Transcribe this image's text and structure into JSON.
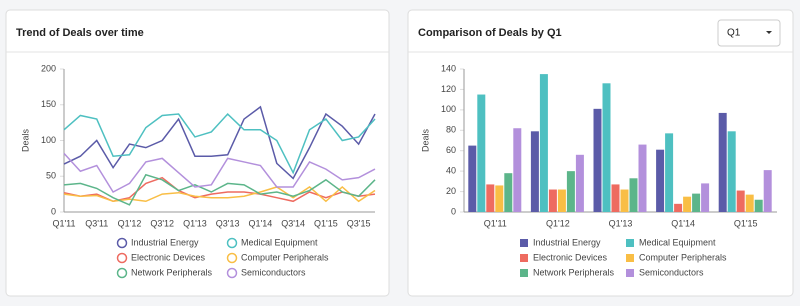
{
  "controls": {
    "quarter_select": "Q1"
  },
  "chart_data": [
    {
      "type": "line",
      "title": "Trend of Deals over time",
      "y_label": "Deals",
      "categories": [
        "Q1'11",
        null,
        "Q3'11",
        null,
        "Q1'12",
        null,
        "Q3'12",
        null,
        "Q1'13",
        null,
        "Q3'13",
        null,
        "Q1'14",
        null,
        "Q3'14",
        null,
        "Q1'15",
        null,
        "Q3'15",
        null
      ],
      "ylim": [
        0,
        200
      ],
      "yticks": [
        0,
        50,
        100,
        150,
        200
      ],
      "legend": "bottom",
      "series": [
        {
          "name": "Industrial Energy",
          "color": "#5b5ba8",
          "values": [
            67,
            78,
            100,
            62,
            95,
            90,
            100,
            130,
            78,
            78,
            80,
            130,
            147,
            68,
            47,
            90,
            137,
            120,
            95,
            137
          ]
        },
        {
          "name": "Medical Equipment",
          "color": "#4ec0c1",
          "values": [
            115,
            135,
            130,
            78,
            80,
            118,
            135,
            137,
            105,
            112,
            137,
            115,
            115,
            100,
            55,
            115,
            130,
            100,
            105,
            130
          ]
        },
        {
          "name": "Electronic Devices",
          "color": "#ee6b60",
          "values": [
            27,
            22,
            25,
            15,
            20,
            40,
            48,
            30,
            20,
            25,
            28,
            28,
            25,
            20,
            15,
            28,
            20,
            28,
            22,
            25
          ]
        },
        {
          "name": "Computer Peripherals",
          "color": "#f9be45",
          "values": [
            25,
            22,
            23,
            15,
            18,
            15,
            25,
            27,
            22,
            20,
            20,
            22,
            28,
            35,
            20,
            35,
            15,
            35,
            15,
            30
          ]
        },
        {
          "name": "Network Peripherals",
          "color": "#5cb58a",
          "values": [
            38,
            40,
            33,
            20,
            10,
            52,
            45,
            30,
            38,
            28,
            40,
            38,
            25,
            28,
            22,
            30,
            45,
            28,
            22,
            45
          ]
        },
        {
          "name": "Semiconductors",
          "color": "#b390dc",
          "values": [
            82,
            57,
            65,
            28,
            40,
            70,
            75,
            55,
            35,
            38,
            75,
            70,
            65,
            35,
            35,
            70,
            60,
            45,
            48,
            60
          ]
        }
      ]
    },
    {
      "type": "bar",
      "title": "Comparison of Deals by Q1",
      "y_label": "Deals",
      "categories": [
        "Q1'11",
        "Q1'12",
        "Q1'13",
        "Q1'14",
        "Q1'15"
      ],
      "ylim": [
        0,
        140
      ],
      "yticks": [
        0,
        20,
        40,
        60,
        80,
        100,
        120,
        140
      ],
      "legend": "bottom",
      "series": [
        {
          "name": "Industrial Energy",
          "color": "#5b5ba8",
          "values": [
            65,
            79,
            101,
            61,
            97
          ]
        },
        {
          "name": "Medical Equipment",
          "color": "#4ec0c1",
          "values": [
            115,
            135,
            126,
            77,
            79
          ]
        },
        {
          "name": "Electronic Devices",
          "color": "#ee6b60",
          "values": [
            27,
            22,
            27,
            8,
            21
          ]
        },
        {
          "name": "Computer Peripherals",
          "color": "#f9be45",
          "values": [
            26,
            22,
            22,
            15,
            17
          ]
        },
        {
          "name": "Network Peripherals",
          "color": "#5cb58a",
          "values": [
            38,
            40,
            33,
            18,
            12
          ]
        },
        {
          "name": "Semiconductors",
          "color": "#b390dc",
          "values": [
            82,
            56,
            66,
            28,
            41
          ]
        }
      ]
    }
  ]
}
